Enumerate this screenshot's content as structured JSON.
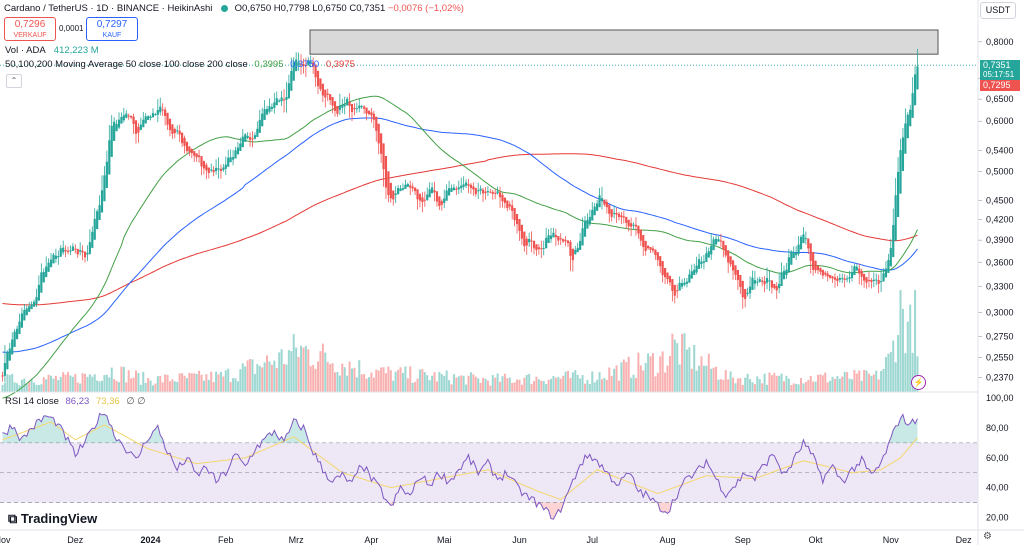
{
  "header": {
    "title": "Cardano / TetherUS · 1D · BINANCE · HeikinAshi",
    "ohlc": [
      {
        "label": "O",
        "value": "0,6750"
      },
      {
        "label": "H",
        "value": "0,7798"
      },
      {
        "label": "L",
        "value": "0,6750"
      },
      {
        "label": "C",
        "value": "0,7351"
      }
    ],
    "change": "−0,0076 (−1,02%)",
    "sell": {
      "price": "0,7296",
      "label": "VERKAUF"
    },
    "buy": {
      "price": "0,7297",
      "label": "KAUF"
    },
    "spread": "0,0001",
    "currency": "USDT"
  },
  "volume_legend": {
    "label": "Vol · ADA",
    "value": "412,223 M"
  },
  "ma_legend": {
    "label": "50,100,200 Moving Average 50 close 100 close 200 close",
    "values": [
      "0,3995",
      "0,3750",
      "0,3975"
    ]
  },
  "rsi_legend": {
    "label": "RSI 14 close",
    "values": [
      "86,23",
      "73,36"
    ],
    "extra": "∅ ∅"
  },
  "price_tags": {
    "last": "0,7351",
    "countdown": "05:17:51",
    "bid": "0,7295"
  },
  "logo": "TradingView",
  "colors": {
    "up": "#26a69a",
    "down": "#ef5350",
    "ma50": "#43a047",
    "ma100": "#2962ff",
    "ma200": "#e53935",
    "rsi": "#7e57c2",
    "rsi_ma": "#f5d76e",
    "band": "#ede7f6",
    "resistance_zone": "#d9d9d9"
  },
  "chart_data": {
    "type": "candlestick",
    "symbol": "Cardano / TetherUS",
    "interval": "1D",
    "candle_style": "HeikinAshi",
    "price_axis": {
      "scale": "log",
      "range": [
        0.225,
        0.835
      ],
      "ticks": [
        "0,8000",
        "0,7000",
        "0,6500",
        "0,6000",
        "0,5400",
        "0,5000",
        "0,4500",
        "0,4200",
        "0,3900",
        "0,3600",
        "0,3300",
        "0,3000",
        "0,2750",
        "0,2550",
        "0,2370"
      ]
    },
    "time_axis": {
      "ticks": [
        "Nov",
        "Dez",
        "2024",
        "Feb",
        "Mrz",
        "Apr",
        "Mai",
        "Jun",
        "Jul",
        "Aug",
        "Sep",
        "Okt",
        "Nov",
        "Dez"
      ],
      "days_after_start": [
        0,
        30,
        61,
        92,
        121,
        152,
        182,
        213,
        243,
        274,
        305,
        335,
        366,
        396
      ]
    },
    "price_anchors": [
      [
        0,
        0.245
      ],
      [
        5,
        0.285
      ],
      [
        12,
        0.31
      ],
      [
        18,
        0.36
      ],
      [
        25,
        0.375
      ],
      [
        30,
        0.37
      ],
      [
        35,
        0.38
      ],
      [
        40,
        0.45
      ],
      [
        45,
        0.6
      ],
      [
        50,
        0.62
      ],
      [
        55,
        0.58
      ],
      [
        60,
        0.62
      ],
      [
        65,
        0.62
      ],
      [
        70,
        0.57
      ],
      [
        75,
        0.55
      ],
      [
        80,
        0.52
      ],
      [
        85,
        0.5
      ],
      [
        90,
        0.51
      ],
      [
        95,
        0.53
      ],
      [
        100,
        0.56
      ],
      [
        105,
        0.6
      ],
      [
        110,
        0.64
      ],
      [
        116,
        0.65
      ],
      [
        118,
        0.72
      ],
      [
        122,
        0.74
      ],
      [
        126,
        0.74
      ],
      [
        130,
        0.69
      ],
      [
        135,
        0.63
      ],
      [
        140,
        0.64
      ],
      [
        145,
        0.62
      ],
      [
        150,
        0.62
      ],
      [
        153,
        0.6
      ],
      [
        157,
        0.48
      ],
      [
        160,
        0.45
      ],
      [
        165,
        0.48
      ],
      [
        170,
        0.45
      ],
      [
        175,
        0.46
      ],
      [
        180,
        0.45
      ],
      [
        185,
        0.47
      ],
      [
        190,
        0.48
      ],
      [
        195,
        0.47
      ],
      [
        200,
        0.46
      ],
      [
        205,
        0.45
      ],
      [
        210,
        0.43
      ],
      [
        215,
        0.39
      ],
      [
        220,
        0.38
      ],
      [
        225,
        0.39
      ],
      [
        230,
        0.4
      ],
      [
        234,
        0.36
      ],
      [
        238,
        0.4
      ],
      [
        242,
        0.44
      ],
      [
        246,
        0.45
      ],
      [
        250,
        0.44
      ],
      [
        255,
        0.42
      ],
      [
        260,
        0.4
      ],
      [
        265,
        0.38
      ],
      [
        270,
        0.36
      ],
      [
        273,
        0.33
      ],
      [
        276,
        0.32
      ],
      [
        282,
        0.34
      ],
      [
        288,
        0.36
      ],
      [
        292,
        0.39
      ],
      [
        296,
        0.38
      ],
      [
        300,
        0.35
      ],
      [
        305,
        0.32
      ],
      [
        308,
        0.33
      ],
      [
        313,
        0.34
      ],
      [
        318,
        0.33
      ],
      [
        322,
        0.35
      ],
      [
        326,
        0.38
      ],
      [
        329,
        0.4
      ],
      [
        332,
        0.37
      ],
      [
        336,
        0.34
      ],
      [
        340,
        0.34
      ],
      [
        345,
        0.34
      ],
      [
        350,
        0.35
      ],
      [
        355,
        0.34
      ],
      [
        358,
        0.33
      ],
      [
        362,
        0.34
      ],
      [
        364,
        0.35
      ],
      [
        366,
        0.38
      ],
      [
        368,
        0.48
      ],
      [
        370,
        0.55
      ],
      [
        372,
        0.6
      ],
      [
        374,
        0.65
      ],
      [
        376,
        0.72
      ],
      [
        377,
        0.7351
      ]
    ],
    "max_high": 0.7798,
    "resistance_zone": [
      0.765,
      0.835
    ],
    "dotted_price_line": 0.7351,
    "moving_averages": [
      {
        "name": "MA 50",
        "value": 0.3995
      },
      {
        "name": "MA 100",
        "value": 0.375
      },
      {
        "name": "MA 200",
        "value": 0.3975
      }
    ],
    "volume_anchors": [
      [
        0,
        8
      ],
      [
        30,
        9
      ],
      [
        45,
        14
      ],
      [
        60,
        8
      ],
      [
        90,
        10
      ],
      [
        115,
        22
      ],
      [
        122,
        28
      ],
      [
        150,
        14
      ],
      [
        160,
        12
      ],
      [
        200,
        8
      ],
      [
        243,
        10
      ],
      [
        274,
        22
      ],
      [
        276,
        30
      ],
      [
        300,
        9
      ],
      [
        330,
        9
      ],
      [
        360,
        10
      ],
      [
        366,
        22
      ],
      [
        370,
        55
      ],
      [
        374,
        40
      ],
      [
        376,
        60
      ],
      [
        377,
        20
      ]
    ],
    "rsi": {
      "ticks": [
        "100,00",
        "80,00",
        "60,00",
        "40,00",
        "20,00"
      ],
      "range": [
        15,
        100
      ],
      "bands": [
        30,
        50,
        70
      ],
      "last": 86.23,
      "ma_last": 73.36,
      "anchors": [
        [
          0,
          75
        ],
        [
          4,
          82
        ],
        [
          8,
          72
        ],
        [
          12,
          80
        ],
        [
          18,
          88
        ],
        [
          22,
          84
        ],
        [
          26,
          74
        ],
        [
          30,
          62
        ],
        [
          34,
          70
        ],
        [
          38,
          82
        ],
        [
          42,
          92
        ],
        [
          46,
          76
        ],
        [
          50,
          68
        ],
        [
          55,
          58
        ],
        [
          60,
          74
        ],
        [
          64,
          80
        ],
        [
          68,
          64
        ],
        [
          72,
          52
        ],
        [
          76,
          60
        ],
        [
          80,
          48
        ],
        [
          84,
          54
        ],
        [
          88,
          44
        ],
        [
          92,
          50
        ],
        [
          96,
          62
        ],
        [
          100,
          54
        ],
        [
          104,
          66
        ],
        [
          108,
          72
        ],
        [
          112,
          78
        ],
        [
          116,
          70
        ],
        [
          120,
          84
        ],
        [
          124,
          80
        ],
        [
          128,
          64
        ],
        [
          132,
          52
        ],
        [
          136,
          44
        ],
        [
          140,
          48
        ],
        [
          144,
          42
        ],
        [
          148,
          56
        ],
        [
          152,
          46
        ],
        [
          156,
          38
        ],
        [
          160,
          26
        ],
        [
          164,
          40
        ],
        [
          168,
          34
        ],
        [
          172,
          48
        ],
        [
          176,
          42
        ],
        [
          180,
          50
        ],
        [
          184,
          44
        ],
        [
          188,
          52
        ],
        [
          192,
          60
        ],
        [
          196,
          50
        ],
        [
          200,
          56
        ],
        [
          204,
          46
        ],
        [
          208,
          50
        ],
        [
          212,
          40
        ],
        [
          216,
          34
        ],
        [
          220,
          30
        ],
        [
          224,
          24
        ],
        [
          228,
          20
        ],
        [
          230,
          26
        ],
        [
          234,
          40
        ],
        [
          238,
          56
        ],
        [
          242,
          62
        ],
        [
          246,
          56
        ],
        [
          250,
          48
        ],
        [
          254,
          42
        ],
        [
          258,
          50
        ],
        [
          262,
          38
        ],
        [
          266,
          34
        ],
        [
          270,
          28
        ],
        [
          274,
          24
        ],
        [
          278,
          36
        ],
        [
          282,
          46
        ],
        [
          286,
          50
        ],
        [
          290,
          58
        ],
        [
          294,
          46
        ],
        [
          298,
          36
        ],
        [
          302,
          42
        ],
        [
          306,
          50
        ],
        [
          310,
          46
        ],
        [
          314,
          56
        ],
        [
          318,
          62
        ],
        [
          322,
          48
        ],
        [
          326,
          58
        ],
        [
          330,
          70
        ],
        [
          334,
          60
        ],
        [
          338,
          46
        ],
        [
          342,
          54
        ],
        [
          346,
          44
        ],
        [
          350,
          52
        ],
        [
          354,
          58
        ],
        [
          358,
          48
        ],
        [
          362,
          56
        ],
        [
          366,
          72
        ],
        [
          370,
          88
        ],
        [
          374,
          82
        ],
        [
          377,
          86.23
        ]
      ],
      "ma_anchors": [
        [
          0,
          72
        ],
        [
          20,
          84
        ],
        [
          30,
          72
        ],
        [
          42,
          82
        ],
        [
          60,
          66
        ],
        [
          80,
          56
        ],
        [
          100,
          60
        ],
        [
          120,
          74
        ],
        [
          140,
          50
        ],
        [
          160,
          40
        ],
        [
          180,
          46
        ],
        [
          200,
          52
        ],
        [
          220,
          38
        ],
        [
          230,
          32
        ],
        [
          245,
          52
        ],
        [
          270,
          36
        ],
        [
          290,
          48
        ],
        [
          310,
          46
        ],
        [
          330,
          58
        ],
        [
          350,
          50
        ],
        [
          362,
          52
        ],
        [
          370,
          60
        ],
        [
          377,
          73.36
        ]
      ]
    }
  }
}
